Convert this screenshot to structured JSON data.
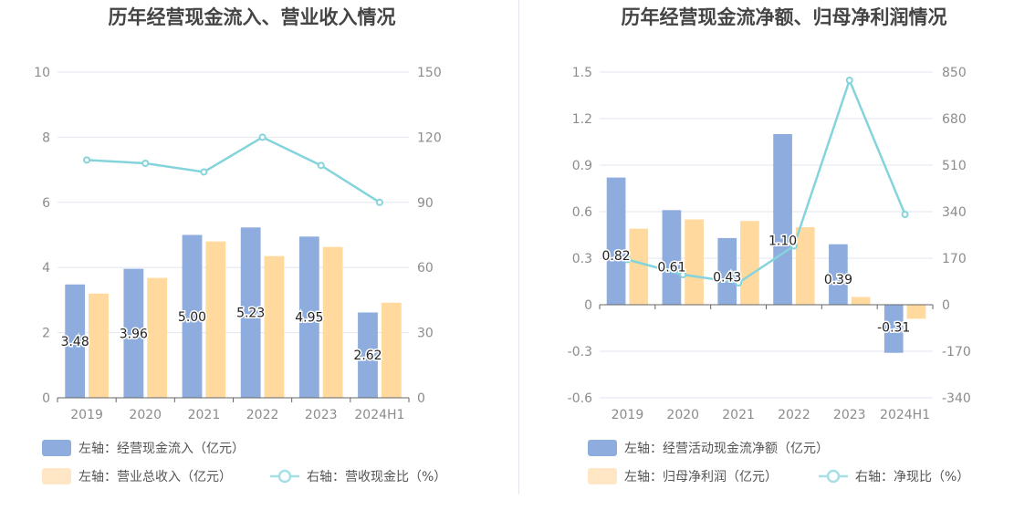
{
  "colors": {
    "blue": "#8eadde",
    "orange": "#ffd99d",
    "line": "#84d4dc",
    "grid": "#e3e6f1",
    "axis": "#666666",
    "legend_blue": "#8eadde",
    "legend_orange": "#ffe6c4",
    "legend_line": "#a6e0e6"
  },
  "chart_data": [
    {
      "type": "bar",
      "title": "历年经营现金流入、营业收入情况",
      "categories": [
        "2019",
        "2020",
        "2021",
        "2022",
        "2023",
        "2024H1"
      ],
      "left_axis": {
        "ylim": [
          0,
          10
        ],
        "ticks": [
          "0",
          "2",
          "4",
          "6",
          "8",
          "10"
        ]
      },
      "right_axis": {
        "ylim": [
          0,
          150
        ],
        "ticks": [
          "0",
          "30",
          "60",
          "90",
          "120",
          "150"
        ]
      },
      "grid": true,
      "series": [
        {
          "name": "左轴：经营现金流入（亿元）",
          "kind": "bar",
          "axis": "left",
          "color": "#8eadde",
          "values": [
            3.48,
            3.96,
            5.0,
            5.23,
            4.95,
            2.62
          ],
          "labels": [
            "3.48",
            "3.96",
            "5.00",
            "5.23",
            "4.95",
            "2.62"
          ]
        },
        {
          "name": "左轴：营业总收入（亿元）",
          "kind": "bar",
          "axis": "left",
          "color": "#ffd99d",
          "values": [
            3.2,
            3.68,
            4.8,
            4.35,
            4.63,
            2.92
          ]
        },
        {
          "name": "右轴：营收现金比（%）",
          "kind": "line",
          "axis": "right",
          "color": "#84d4dc",
          "values": [
            109.5,
            108,
            104,
            120,
            107,
            90
          ]
        }
      ],
      "legend_rows": [
        [
          0
        ],
        [
          1,
          2
        ]
      ],
      "legend_placement": "bottom-left"
    },
    {
      "type": "bar",
      "title": "历年经营现金流净额、归母净利润情况",
      "categories": [
        "2019",
        "2020",
        "2021",
        "2022",
        "2023",
        "2024H1"
      ],
      "left_axis": {
        "ylim": [
          -0.6,
          1.5
        ],
        "ticks": [
          "-0.6",
          "-0.3",
          "0",
          "0.3",
          "0.6",
          "0.9",
          "1.2",
          "1.5"
        ]
      },
      "right_axis": {
        "ylim": [
          -340,
          850
        ],
        "ticks": [
          "-340",
          "-170",
          "0",
          "170",
          "340",
          "510",
          "680",
          "850"
        ]
      },
      "grid": true,
      "series": [
        {
          "name": "左轴：经营活动现金流净额（亿元）",
          "kind": "bar",
          "axis": "left",
          "color": "#8eadde",
          "values": [
            0.82,
            0.61,
            0.43,
            1.1,
            0.39,
            -0.31
          ],
          "labels": [
            "0.82",
            "0.61",
            "0.43",
            "1.10",
            "0.39",
            "-0.31"
          ]
        },
        {
          "name": "左轴：归母净利润（亿元）",
          "kind": "bar",
          "axis": "left",
          "color": "#ffd99d",
          "values": [
            0.49,
            0.55,
            0.54,
            0.5,
            0.05,
            -0.09
          ]
        },
        {
          "name": "右轴：净现比（%）",
          "kind": "line",
          "axis": "right",
          "color": "#84d4dc",
          "values": [
            165,
            110,
            80,
            215,
            820,
            330
          ]
        }
      ],
      "legend_rows": [
        [
          0
        ],
        [
          1,
          2
        ]
      ],
      "legend_placement": "bottom-left"
    }
  ]
}
